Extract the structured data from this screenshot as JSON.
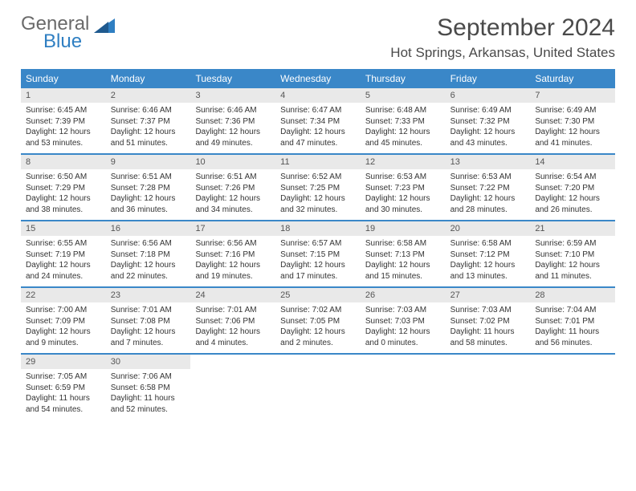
{
  "logo": {
    "general": "General",
    "blue": "Blue"
  },
  "title": "September 2024",
  "location": "Hot Springs, Arkansas, United States",
  "colors": {
    "header_bg": "#3a87c8",
    "header_text": "#ffffff",
    "daynum_bg": "#e9e9e9",
    "week_border": "#3a87c8",
    "logo_gray": "#6a6a6a",
    "logo_blue": "#2f7fc2"
  },
  "dayNames": [
    "Sunday",
    "Monday",
    "Tuesday",
    "Wednesday",
    "Thursday",
    "Friday",
    "Saturday"
  ],
  "weeks": [
    [
      {
        "n": "1",
        "sr": "6:45 AM",
        "ss": "7:39 PM",
        "dl": "12 hours and 53 minutes."
      },
      {
        "n": "2",
        "sr": "6:46 AM",
        "ss": "7:37 PM",
        "dl": "12 hours and 51 minutes."
      },
      {
        "n": "3",
        "sr": "6:46 AM",
        "ss": "7:36 PM",
        "dl": "12 hours and 49 minutes."
      },
      {
        "n": "4",
        "sr": "6:47 AM",
        "ss": "7:34 PM",
        "dl": "12 hours and 47 minutes."
      },
      {
        "n": "5",
        "sr": "6:48 AM",
        "ss": "7:33 PM",
        "dl": "12 hours and 45 minutes."
      },
      {
        "n": "6",
        "sr": "6:49 AM",
        "ss": "7:32 PM",
        "dl": "12 hours and 43 minutes."
      },
      {
        "n": "7",
        "sr": "6:49 AM",
        "ss": "7:30 PM",
        "dl": "12 hours and 41 minutes."
      }
    ],
    [
      {
        "n": "8",
        "sr": "6:50 AM",
        "ss": "7:29 PM",
        "dl": "12 hours and 38 minutes."
      },
      {
        "n": "9",
        "sr": "6:51 AM",
        "ss": "7:28 PM",
        "dl": "12 hours and 36 minutes."
      },
      {
        "n": "10",
        "sr": "6:51 AM",
        "ss": "7:26 PM",
        "dl": "12 hours and 34 minutes."
      },
      {
        "n": "11",
        "sr": "6:52 AM",
        "ss": "7:25 PM",
        "dl": "12 hours and 32 minutes."
      },
      {
        "n": "12",
        "sr": "6:53 AM",
        "ss": "7:23 PM",
        "dl": "12 hours and 30 minutes."
      },
      {
        "n": "13",
        "sr": "6:53 AM",
        "ss": "7:22 PM",
        "dl": "12 hours and 28 minutes."
      },
      {
        "n": "14",
        "sr": "6:54 AM",
        "ss": "7:20 PM",
        "dl": "12 hours and 26 minutes."
      }
    ],
    [
      {
        "n": "15",
        "sr": "6:55 AM",
        "ss": "7:19 PM",
        "dl": "12 hours and 24 minutes."
      },
      {
        "n": "16",
        "sr": "6:56 AM",
        "ss": "7:18 PM",
        "dl": "12 hours and 22 minutes."
      },
      {
        "n": "17",
        "sr": "6:56 AM",
        "ss": "7:16 PM",
        "dl": "12 hours and 19 minutes."
      },
      {
        "n": "18",
        "sr": "6:57 AM",
        "ss": "7:15 PM",
        "dl": "12 hours and 17 minutes."
      },
      {
        "n": "19",
        "sr": "6:58 AM",
        "ss": "7:13 PM",
        "dl": "12 hours and 15 minutes."
      },
      {
        "n": "20",
        "sr": "6:58 AM",
        "ss": "7:12 PM",
        "dl": "12 hours and 13 minutes."
      },
      {
        "n": "21",
        "sr": "6:59 AM",
        "ss": "7:10 PM",
        "dl": "12 hours and 11 minutes."
      }
    ],
    [
      {
        "n": "22",
        "sr": "7:00 AM",
        "ss": "7:09 PM",
        "dl": "12 hours and 9 minutes."
      },
      {
        "n": "23",
        "sr": "7:01 AM",
        "ss": "7:08 PM",
        "dl": "12 hours and 7 minutes."
      },
      {
        "n": "24",
        "sr": "7:01 AM",
        "ss": "7:06 PM",
        "dl": "12 hours and 4 minutes."
      },
      {
        "n": "25",
        "sr": "7:02 AM",
        "ss": "7:05 PM",
        "dl": "12 hours and 2 minutes."
      },
      {
        "n": "26",
        "sr": "7:03 AM",
        "ss": "7:03 PM",
        "dl": "12 hours and 0 minutes."
      },
      {
        "n": "27",
        "sr": "7:03 AM",
        "ss": "7:02 PM",
        "dl": "11 hours and 58 minutes."
      },
      {
        "n": "28",
        "sr": "7:04 AM",
        "ss": "7:01 PM",
        "dl": "11 hours and 56 minutes."
      }
    ],
    [
      {
        "n": "29",
        "sr": "7:05 AM",
        "ss": "6:59 PM",
        "dl": "11 hours and 54 minutes."
      },
      {
        "n": "30",
        "sr": "7:06 AM",
        "ss": "6:58 PM",
        "dl": "11 hours and 52 minutes."
      },
      null,
      null,
      null,
      null,
      null
    ]
  ],
  "labels": {
    "sunrise": "Sunrise:",
    "sunset": "Sunset:",
    "daylight": "Daylight:"
  }
}
